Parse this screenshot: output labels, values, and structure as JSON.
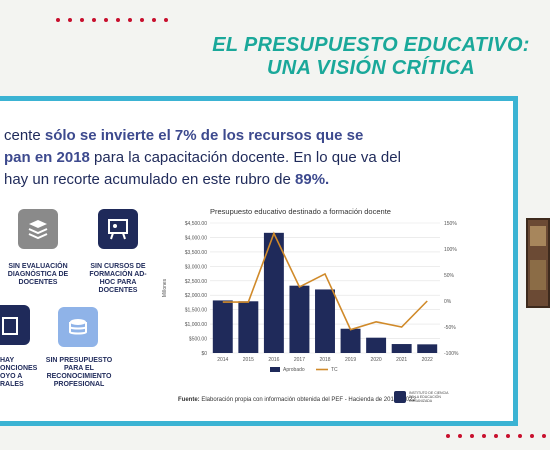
{
  "title": {
    "line1": "EL PRESUPUESTO EDUCATIVO:",
    "line2": "UNA VISIÓN CRÍTICA"
  },
  "headline": {
    "p1": "cente ",
    "p2": "sólo se invierte el 7% de los recursos que se",
    "p3": "pan en 2018",
    "p4": " para la capacitación docente. En lo que va del",
    "p5": " hay un recorte acumulado en este rubro de ",
    "p6": "89%."
  },
  "items": [
    {
      "caption": "SIN EVALUACIÓN DIAGNÓSTICA DE DOCENTES",
      "icon": "stack-icon"
    },
    {
      "caption": "SIN CURSOS DE FORMACIÓN AD-HOC PARA DOCENTES",
      "icon": "presentation-icon"
    },
    {
      "caption": "HAY ONCIONES OYO A RALES",
      "icon": "building-icon"
    },
    {
      "caption": "SIN PRESUPUESTO PARA EL RECONOCIMIENTO PROFESIONAL",
      "icon": "coins-icon"
    }
  ],
  "colors": {
    "accent": "#1aa89a",
    "frame": "#3bb3d3",
    "bar": "#1f2a5a",
    "line": "#d08a2a",
    "dots": "#c8102e"
  },
  "chart_data": {
    "type": "bar",
    "title": "Presupuesto educativo destinado a formación docente",
    "ylabel": "Millones",
    "categories": [
      "2014",
      "2015",
      "2016",
      "2017",
      "2018",
      "2019",
      "2020",
      "2021",
      "2022"
    ],
    "series": [
      {
        "name": "Aprobado",
        "type": "bar",
        "axis": "left",
        "values": [
          1820,
          1790,
          4160,
          2330,
          2200,
          840,
          530,
          310,
          300
        ]
      },
      {
        "name": "TC",
        "type": "line",
        "axis": "right",
        "values": [
          -2,
          -2,
          130,
          27,
          52,
          -55,
          -40,
          -50,
          0
        ]
      }
    ],
    "ylim_left": [
      0,
      4500
    ],
    "yticks_left": [
      "$0",
      "$500.00",
      "$1,000.00",
      "$1,500.00",
      "$2,000.00",
      "$2,500.00",
      "$3,000.00",
      "$3,500.00",
      "$4,000.00",
      "$4,500.00"
    ],
    "ylim_right": [
      -100,
      150
    ],
    "yticks_right": [
      "-100%",
      "-50%",
      "0%",
      "50%",
      "100%",
      "150%"
    ],
    "legend": "bottom",
    "grid": true
  },
  "source": {
    "label": "Fuente:",
    "text": " Elaboración propia con información obtenida del PEF - Hacienda de 2014 - 2022"
  },
  "logo": {
    "text": "INSTITUTO DE CIENCIA DE LA EDUCACIÓN ORGANIZADA"
  }
}
